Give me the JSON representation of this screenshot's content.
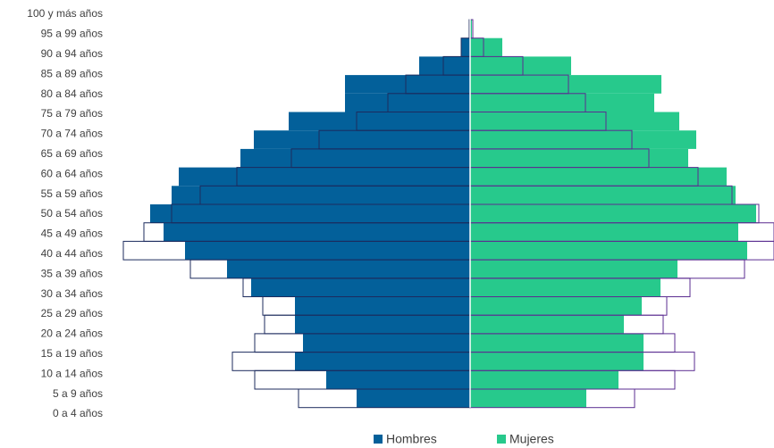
{
  "chart_data": {
    "type": "pyramid",
    "categories": [
      "100 y más años",
      "95 a 99 años",
      "90 a 94 años",
      "85 a 89 años",
      "80 a 84 años",
      "75 a 79 años",
      "70 a 74 años",
      "65 a 69 años",
      "60 a 64 años",
      "55 a 59 años",
      "50 a 54 años",
      "45 a 49 años",
      "40 a 44 años",
      "35 a 39 años",
      "30 a 34 años",
      "25 a 29 años",
      "20 a 24 años",
      "15 a 19 años",
      "10 a 14 años",
      "5 a 9 años",
      "0 a 4 años"
    ],
    "series": [
      {
        "name": "Hombres",
        "color": "#03609a",
        "side": "left",
        "style": "filled",
        "values": [
          1,
          10,
          57,
          140,
          140,
          203,
          242,
          257,
          326,
          334,
          358,
          343,
          319,
          272,
          245,
          196,
          196,
          187,
          196,
          161,
          127
        ]
      },
      {
        "name": "Mujeres",
        "color": "#27c98c",
        "side": "right",
        "style": "filled",
        "values": [
          2,
          36,
          113,
          214,
          206,
          234,
          253,
          244,
          287,
          297,
          320,
          300,
          310,
          232,
          213,
          192,
          172,
          194,
          194,
          166,
          130
        ]
      },
      {
        "color": "#1c2b5e",
        "side": "left",
        "style": "outline",
        "values": [
          1,
          10,
          30,
          72,
          92,
          127,
          169,
          200,
          261,
          302,
          334,
          365,
          388,
          313,
          254,
          232,
          230,
          241,
          266,
          241,
          192
        ]
      },
      {
        "color": "#5b2d91",
        "side": "right",
        "style": "outline",
        "values": [
          3,
          15,
          59,
          110,
          129,
          152,
          181,
          200,
          255,
          293,
          323,
          340,
          340,
          307,
          246,
          220,
          216,
          229,
          251,
          229,
          184
        ]
      }
    ],
    "legend": "bottom"
  }
}
